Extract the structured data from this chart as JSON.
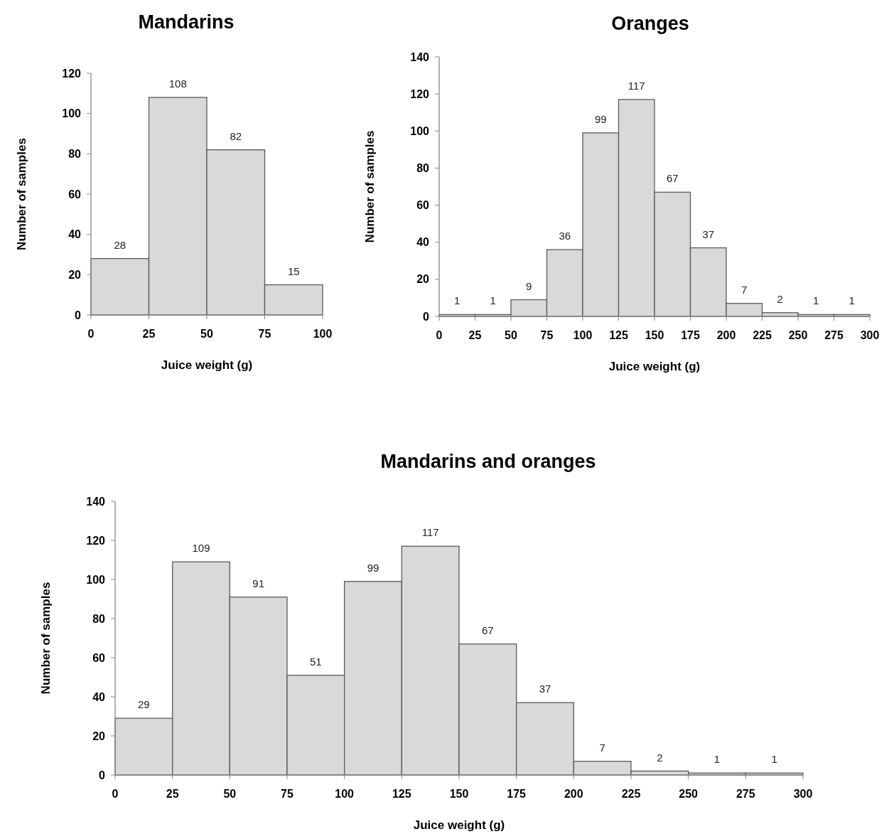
{
  "chart_data": [
    {
      "type": "histogram",
      "title": "Mandarins",
      "xlabel": "Juice weight (g)",
      "ylabel": "Number of samples",
      "bins": [
        0,
        25,
        50,
        75,
        100
      ],
      "values": [
        28,
        108,
        82,
        15
      ],
      "color": "#d9d9d9",
      "xlim": [
        0,
        100
      ],
      "xticks": [
        0,
        25,
        50,
        75,
        100
      ],
      "ylim": [
        0,
        120
      ],
      "yticks": [
        0,
        20,
        40,
        60,
        80,
        100,
        120
      ],
      "data_labels": true,
      "grid": false
    },
    {
      "type": "histogram",
      "title": "Oranges",
      "xlabel": "Juice weight (g)",
      "ylabel": "Number of samples",
      "bins": [
        0,
        25,
        50,
        75,
        100,
        125,
        150,
        175,
        200,
        225,
        250,
        275,
        300
      ],
      "values": [
        1,
        1,
        9,
        36,
        99,
        117,
        67,
        37,
        7,
        2,
        1,
        1
      ],
      "color": "#d9d9d9",
      "xlim": [
        0,
        300
      ],
      "xticks": [
        0,
        25,
        50,
        75,
        100,
        125,
        150,
        175,
        200,
        225,
        250,
        275,
        300
      ],
      "ylim": [
        0,
        140
      ],
      "yticks": [
        0,
        20,
        40,
        60,
        80,
        100,
        120,
        140
      ],
      "data_labels": true,
      "grid": false
    },
    {
      "type": "histogram",
      "title": "Mandarins and oranges",
      "xlabel": "Juice weight (g)",
      "ylabel": "Number of samples",
      "bins": [
        0,
        25,
        50,
        75,
        100,
        125,
        150,
        175,
        200,
        225,
        250,
        275,
        300
      ],
      "values": [
        29,
        109,
        91,
        51,
        99,
        117,
        67,
        37,
        7,
        2,
        1,
        1
      ],
      "color": "#d9d9d9",
      "xlim": [
        0,
        300
      ],
      "xticks": [
        0,
        25,
        50,
        75,
        100,
        125,
        150,
        175,
        200,
        225,
        250,
        275,
        300
      ],
      "ylim": [
        0,
        140
      ],
      "yticks": [
        0,
        20,
        40,
        60,
        80,
        100,
        120,
        140
      ],
      "data_labels": true,
      "grid": false
    }
  ]
}
